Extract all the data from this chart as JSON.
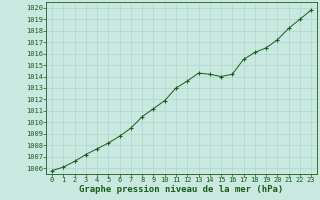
{
  "x": [
    0,
    1,
    2,
    3,
    4,
    5,
    6,
    7,
    8,
    9,
    10,
    11,
    12,
    13,
    14,
    15,
    16,
    17,
    18,
    19,
    20,
    21,
    22,
    23
  ],
  "y": [
    1005.8,
    1006.1,
    1006.6,
    1007.2,
    1007.7,
    1008.2,
    1008.8,
    1009.5,
    1010.5,
    1011.2,
    1011.9,
    1013.0,
    1013.6,
    1014.3,
    1014.2,
    1014.0,
    1014.2,
    1015.5,
    1016.1,
    1016.5,
    1017.2,
    1018.2,
    1019.0,
    1019.8
  ],
  "ylim_min": 1005.5,
  "ylim_max": 1020.5,
  "xlim_min": -0.5,
  "xlim_max": 23.5,
  "yticks": [
    1006,
    1007,
    1008,
    1009,
    1010,
    1011,
    1012,
    1013,
    1014,
    1015,
    1016,
    1017,
    1018,
    1019,
    1020
  ],
  "xticks": [
    0,
    1,
    2,
    3,
    4,
    5,
    6,
    7,
    8,
    9,
    10,
    11,
    12,
    13,
    14,
    15,
    16,
    17,
    18,
    19,
    20,
    21,
    22,
    23
  ],
  "line_color": "#1a5c1a",
  "marker_color": "#1a5c1a",
  "bg_color": "#c8e8e0",
  "grid_color": "#b0d4cc",
  "xlabel": "Graphe pression niveau de la mer (hPa)",
  "xlabel_fontsize": 6.5,
  "tick_fontsize": 5.0
}
